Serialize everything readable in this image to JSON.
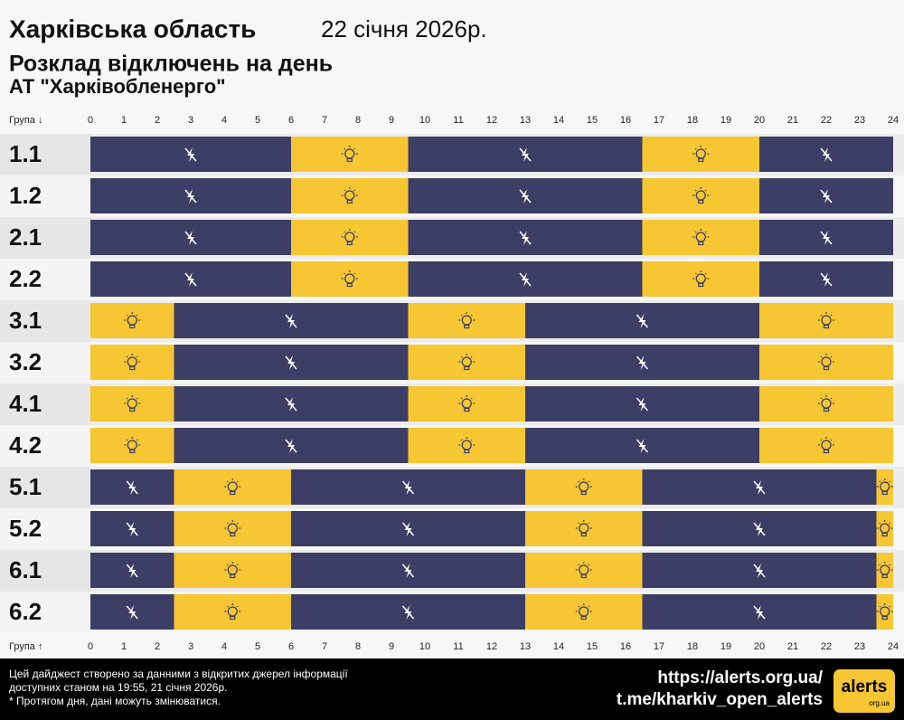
{
  "chart_data": {
    "type": "gantt",
    "title": "Харківська область",
    "date": "22 січня 2026р.",
    "subtitle": "Розклад відключень на день",
    "company": "АТ \"Харківобленерго\"",
    "axis_label_top": "Група ↓",
    "axis_label_bottom": "Група ↑",
    "xlim": [
      0,
      24
    ],
    "xticks": [
      0,
      1,
      2,
      3,
      4,
      5,
      6,
      7,
      8,
      9,
      10,
      11,
      12,
      13,
      14,
      15,
      16,
      17,
      18,
      19,
      20,
      21,
      22,
      23,
      24
    ],
    "colors": {
      "off": "#3d3e66",
      "on": "#f6c633"
    },
    "rows": [
      {
        "name": "1.1",
        "segments": [
          {
            "start": 0,
            "end": 6,
            "state": "off"
          },
          {
            "start": 6,
            "end": 9.5,
            "state": "on"
          },
          {
            "start": 9.5,
            "end": 16.5,
            "state": "off"
          },
          {
            "start": 16.5,
            "end": 20,
            "state": "on"
          },
          {
            "start": 20,
            "end": 24,
            "state": "off"
          }
        ]
      },
      {
        "name": "1.2",
        "segments": [
          {
            "start": 0,
            "end": 6,
            "state": "off"
          },
          {
            "start": 6,
            "end": 9.5,
            "state": "on"
          },
          {
            "start": 9.5,
            "end": 16.5,
            "state": "off"
          },
          {
            "start": 16.5,
            "end": 20,
            "state": "on"
          },
          {
            "start": 20,
            "end": 24,
            "state": "off"
          }
        ]
      },
      {
        "name": "2.1",
        "segments": [
          {
            "start": 0,
            "end": 6,
            "state": "off"
          },
          {
            "start": 6,
            "end": 9.5,
            "state": "on"
          },
          {
            "start": 9.5,
            "end": 16.5,
            "state": "off"
          },
          {
            "start": 16.5,
            "end": 20,
            "state": "on"
          },
          {
            "start": 20,
            "end": 24,
            "state": "off"
          }
        ]
      },
      {
        "name": "2.2",
        "segments": [
          {
            "start": 0,
            "end": 6,
            "state": "off"
          },
          {
            "start": 6,
            "end": 9.5,
            "state": "on"
          },
          {
            "start": 9.5,
            "end": 16.5,
            "state": "off"
          },
          {
            "start": 16.5,
            "end": 20,
            "state": "on"
          },
          {
            "start": 20,
            "end": 24,
            "state": "off"
          }
        ]
      },
      {
        "name": "3.1",
        "segments": [
          {
            "start": 0,
            "end": 2.5,
            "state": "on"
          },
          {
            "start": 2.5,
            "end": 9.5,
            "state": "off"
          },
          {
            "start": 9.5,
            "end": 13,
            "state": "on"
          },
          {
            "start": 13,
            "end": 20,
            "state": "off"
          },
          {
            "start": 20,
            "end": 24,
            "state": "on"
          }
        ]
      },
      {
        "name": "3.2",
        "segments": [
          {
            "start": 0,
            "end": 2.5,
            "state": "on"
          },
          {
            "start": 2.5,
            "end": 9.5,
            "state": "off"
          },
          {
            "start": 9.5,
            "end": 13,
            "state": "on"
          },
          {
            "start": 13,
            "end": 20,
            "state": "off"
          },
          {
            "start": 20,
            "end": 24,
            "state": "on"
          }
        ]
      },
      {
        "name": "4.1",
        "segments": [
          {
            "start": 0,
            "end": 2.5,
            "state": "on"
          },
          {
            "start": 2.5,
            "end": 9.5,
            "state": "off"
          },
          {
            "start": 9.5,
            "end": 13,
            "state": "on"
          },
          {
            "start": 13,
            "end": 20,
            "state": "off"
          },
          {
            "start": 20,
            "end": 24,
            "state": "on"
          }
        ]
      },
      {
        "name": "4.2",
        "segments": [
          {
            "start": 0,
            "end": 2.5,
            "state": "on"
          },
          {
            "start": 2.5,
            "end": 9.5,
            "state": "off"
          },
          {
            "start": 9.5,
            "end": 13,
            "state": "on"
          },
          {
            "start": 13,
            "end": 20,
            "state": "off"
          },
          {
            "start": 20,
            "end": 24,
            "state": "on"
          }
        ]
      },
      {
        "name": "5.1",
        "segments": [
          {
            "start": 0,
            "end": 2.5,
            "state": "off"
          },
          {
            "start": 2.5,
            "end": 6,
            "state": "on"
          },
          {
            "start": 6,
            "end": 13,
            "state": "off"
          },
          {
            "start": 13,
            "end": 16.5,
            "state": "on"
          },
          {
            "start": 16.5,
            "end": 23.5,
            "state": "off"
          },
          {
            "start": 23.5,
            "end": 24,
            "state": "on"
          }
        ]
      },
      {
        "name": "5.2",
        "segments": [
          {
            "start": 0,
            "end": 2.5,
            "state": "off"
          },
          {
            "start": 2.5,
            "end": 6,
            "state": "on"
          },
          {
            "start": 6,
            "end": 13,
            "state": "off"
          },
          {
            "start": 13,
            "end": 16.5,
            "state": "on"
          },
          {
            "start": 16.5,
            "end": 23.5,
            "state": "off"
          },
          {
            "start": 23.5,
            "end": 24,
            "state": "on"
          }
        ]
      },
      {
        "name": "6.1",
        "segments": [
          {
            "start": 0,
            "end": 2.5,
            "state": "off"
          },
          {
            "start": 2.5,
            "end": 6,
            "state": "on"
          },
          {
            "start": 6,
            "end": 13,
            "state": "off"
          },
          {
            "start": 13,
            "end": 16.5,
            "state": "on"
          },
          {
            "start": 16.5,
            "end": 23.5,
            "state": "off"
          },
          {
            "start": 23.5,
            "end": 24,
            "state": "on"
          }
        ]
      },
      {
        "name": "6.2",
        "segments": [
          {
            "start": 0,
            "end": 2.5,
            "state": "off"
          },
          {
            "start": 2.5,
            "end": 6,
            "state": "on"
          },
          {
            "start": 6,
            "end": 13,
            "state": "off"
          },
          {
            "start": 13,
            "end": 16.5,
            "state": "on"
          },
          {
            "start": 16.5,
            "end": 23.5,
            "state": "off"
          },
          {
            "start": 23.5,
            "end": 24,
            "state": "on"
          }
        ]
      }
    ],
    "footer": {
      "lines": [
        "Цей дайджест створено за данними з відкритих джерел інформації",
        "доступних станом на 19:55, 21 січня 2026р.",
        "* Протягом дня, дані можуть змінюватися."
      ],
      "links": [
        "https://alerts.org.ua/",
        "t.me/kharkiv_open_alerts"
      ],
      "logo": "alerts",
      "logo_domain": "org.ua"
    }
  }
}
